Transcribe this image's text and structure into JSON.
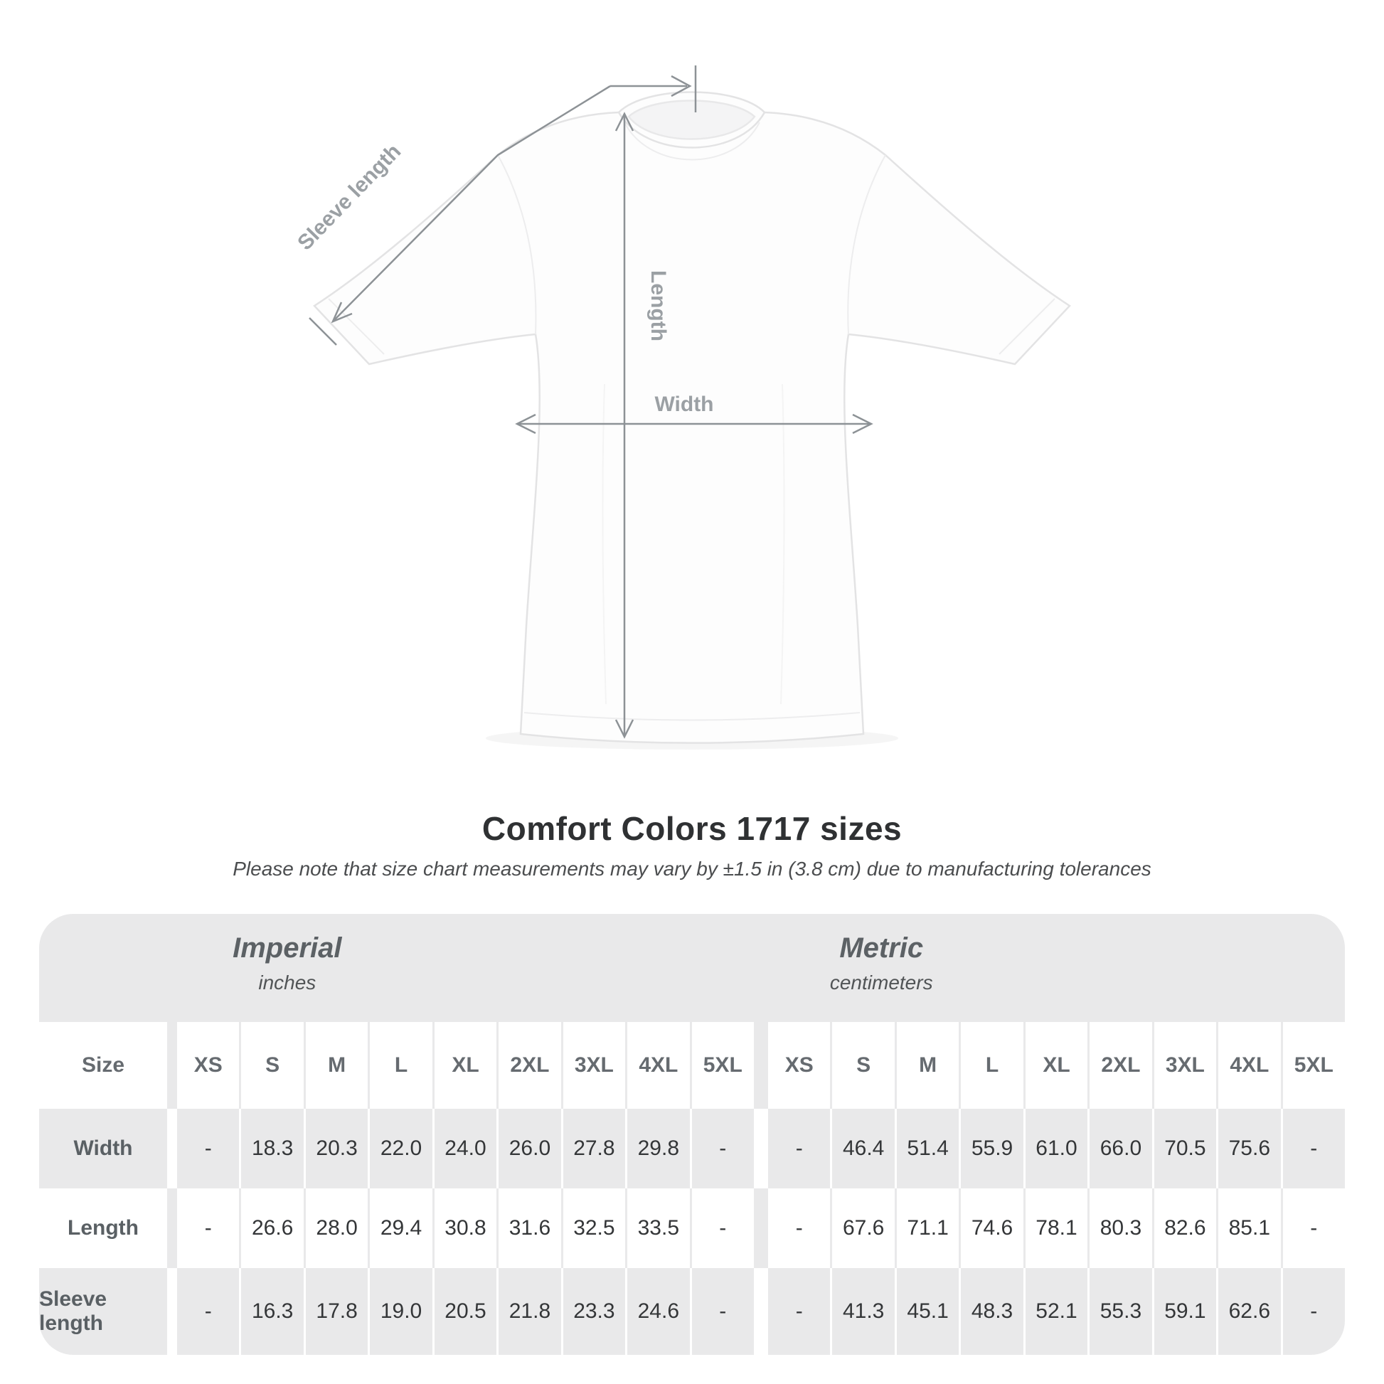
{
  "chart_data": {
    "type": "table",
    "title": "Comfort Colors 1717 sizes",
    "note": "Please note that size chart measurements may vary by ±1.5 in (3.8 cm) due to manufacturing tolerances",
    "unit_groups": [
      {
        "label": "Imperial",
        "sublabel": "inches"
      },
      {
        "label": "Metric",
        "sublabel": "centimeters"
      }
    ],
    "size_column_header": "Size",
    "sizes": [
      "XS",
      "S",
      "M",
      "L",
      "XL",
      "2XL",
      "3XL",
      "4XL",
      "5XL"
    ],
    "rows": [
      {
        "label": "Width",
        "imperial": [
          "-",
          "18.3",
          "20.3",
          "22.0",
          "24.0",
          "26.0",
          "27.8",
          "29.8",
          "-"
        ],
        "metric": [
          "-",
          "46.4",
          "51.4",
          "55.9",
          "61.0",
          "66.0",
          "70.5",
          "75.6",
          "-"
        ]
      },
      {
        "label": "Length",
        "imperial": [
          "-",
          "26.6",
          "28.0",
          "29.4",
          "30.8",
          "31.6",
          "32.5",
          "33.5",
          "-"
        ],
        "metric": [
          "-",
          "67.6",
          "71.1",
          "74.6",
          "78.1",
          "80.3",
          "82.6",
          "85.1",
          "-"
        ]
      },
      {
        "label": "Sleeve length",
        "imperial": [
          "-",
          "16.3",
          "17.8",
          "19.0",
          "20.5",
          "21.8",
          "23.3",
          "24.6",
          "-"
        ],
        "metric": [
          "-",
          "41.3",
          "45.1",
          "48.3",
          "52.1",
          "55.3",
          "59.1",
          "62.6",
          "-"
        ]
      }
    ]
  },
  "diagram": {
    "sleeve_length_label": "Sleeve length",
    "length_label": "Length",
    "width_label": "Width"
  },
  "colors": {
    "card_bg": "#e9e9ea",
    "cell_white": "#ffffff",
    "value_text": "#343638",
    "header_text": "#666b70",
    "dimension_line": "#8d9296",
    "diagram_label": "#9ba0a4",
    "title_text": "#2f3133"
  }
}
